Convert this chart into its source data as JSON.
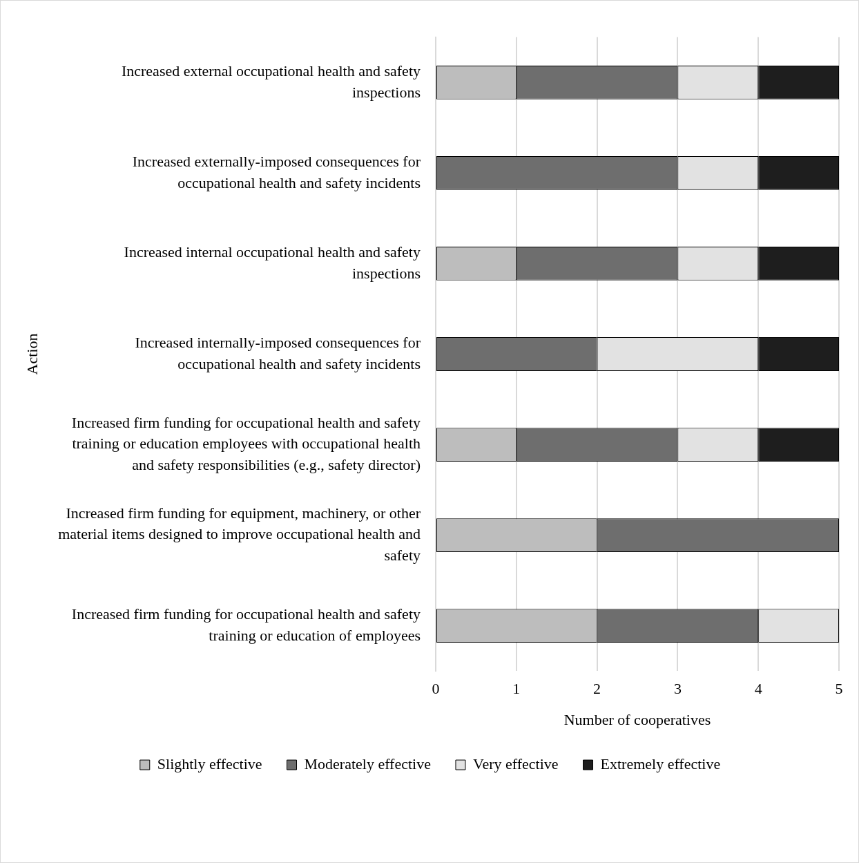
{
  "chart_data": {
    "type": "bar",
    "orientation": "horizontal",
    "stacked": true,
    "xlabel": "Number of cooperatives",
    "ylabel": "Action",
    "categories": [
      "Increased external occupational health and safety inspections",
      "Increased externally-imposed consequences for occupational health and safety incidents",
      "Increased internal occupational health and safety inspections",
      "Increased internally-imposed consequences for occupational health and safety incidents",
      "Increased firm funding for occupational health and safety training or education employees with occupational health and safety responsibilities (e.g., safety director)",
      "Increased firm funding for equipment, machinery, or other material items designed to improve occupational health and safety",
      "Increased firm funding for occupational health and safety training or education of employees"
    ],
    "series": [
      {
        "name": "Slightly effective",
        "color": "#bdbdbd",
        "values": [
          1,
          0,
          1,
          0,
          1,
          2,
          2
        ]
      },
      {
        "name": "Moderately effective",
        "color": "#6e6e6e",
        "values": [
          2,
          3,
          2,
          2,
          2,
          3,
          2
        ]
      },
      {
        "name": "Very effective",
        "color": "#e2e2e2",
        "values": [
          1,
          1,
          1,
          2,
          1,
          0,
          1
        ]
      },
      {
        "name": "Extremely effective",
        "color": "#1e1e1e",
        "values": [
          1,
          1,
          1,
          1,
          1,
          0,
          0
        ]
      }
    ],
    "xlim": [
      0,
      5
    ],
    "xticks": [
      0,
      1,
      2,
      3,
      4,
      5
    ],
    "grid": "x",
    "legend": "bottom"
  }
}
